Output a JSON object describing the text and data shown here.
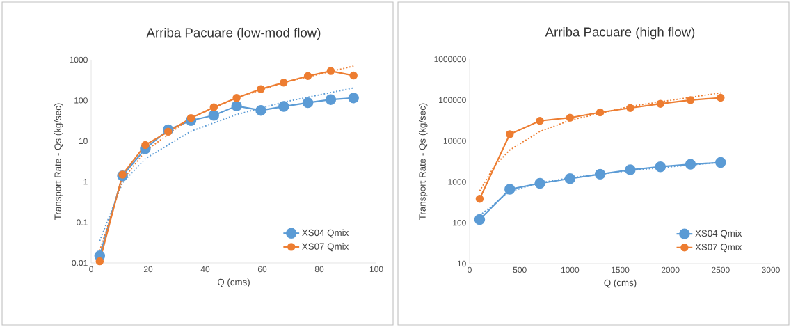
{
  "chart_data": [
    {
      "type": "line",
      "title": "Arriba Pacuare (low-mod flow)",
      "xlabel": "Q (cms)",
      "ylabel": "Transport Rate - Qs (kg/sec)",
      "log": "y",
      "grid": false,
      "legend": "bottom right",
      "marker": "circle",
      "line_style": "solid",
      "xlim": [
        0,
        100
      ],
      "xticks": [
        0,
        20,
        40,
        60,
        80,
        100
      ],
      "ylim": [
        0.01,
        1000
      ],
      "yticks": [
        0.01,
        0.1,
        1,
        10,
        100,
        1000
      ],
      "x": [
        3,
        11,
        19,
        27,
        35,
        43,
        51,
        59.5,
        67.5,
        76,
        84,
        92
      ],
      "series": [
        {
          "name": "XS04 Qmix",
          "color": "#5b9bd5",
          "values": [
            0.015,
            1.4,
            6.5,
            19,
            32,
            43,
            73,
            57,
            71,
            88,
            105,
            115
          ]
        },
        {
          "name": "XS07 Qmix",
          "color": "#ed7d31",
          "values": [
            0.011,
            1.5,
            8,
            17,
            37,
            68,
            115,
            190,
            275,
            400,
            530,
            410
          ]
        },
        {
          "type": "line",
          "color": "#5b9bd5",
          "line_style": "dotted",
          "marker": "none",
          "x": [
            3,
            11,
            19,
            35,
            51,
            67.5,
            92
          ],
          "values": [
            0.035,
            0.94,
            3.7,
            17.5,
            45,
            91,
            203
          ]
        },
        {
          "type": "line",
          "color": "#ed7d31",
          "line_style": "dotted",
          "marker": "none",
          "x": [
            3,
            11,
            19,
            35,
            51,
            67.5,
            92
          ],
          "values": [
            0.02,
            1.1,
            5.7,
            37,
            116,
            276,
            700
          ]
        }
      ]
    },
    {
      "type": "line",
      "title": "Arriba Pacuare (high flow)",
      "xlabel": "Q (cms)",
      "ylabel": "Transport Rate - Qs (kg/sec)",
      "log": "y",
      "grid": false,
      "legend": "bottom right",
      "marker": "circle",
      "line_style": "solid",
      "xlim": [
        0,
        3000
      ],
      "xticks": [
        0,
        500,
        1000,
        1500,
        2000,
        2500,
        3000
      ],
      "ylim": [
        10,
        1000000
      ],
      "yticks": [
        10,
        100,
        1000,
        10000,
        100000,
        1000000
      ],
      "x": [
        100,
        400,
        700,
        1000,
        1300,
        1600,
        1900,
        2200,
        2500
      ],
      "series": [
        {
          "name": "XS04 Qmix",
          "color": "#5b9bd5",
          "values": [
            120,
            660,
            920,
            1200,
            1540,
            1980,
            2340,
            2690,
            2970
          ]
        },
        {
          "name": "XS07 Qmix",
          "color": "#ed7d31",
          "values": [
            385,
            14600,
            31000,
            37000,
            50000,
            64000,
            81000,
            99500,
            114000
          ]
        },
        {
          "type": "line",
          "color": "#5b9bd5",
          "line_style": "dotted",
          "marker": "none",
          "x": [
            100,
            400,
            700,
            1000,
            1600,
            2500
          ],
          "values": [
            150,
            580,
            950,
            1250,
            1900,
            3000
          ]
        },
        {
          "type": "line",
          "color": "#ed7d31",
          "line_style": "dotted",
          "marker": "none",
          "x": [
            100,
            250,
            400,
            700,
            1000,
            1600,
            2500
          ],
          "values": [
            600,
            2500,
            6000,
            17000,
            32000,
            70000,
            150000
          ]
        }
      ]
    }
  ]
}
